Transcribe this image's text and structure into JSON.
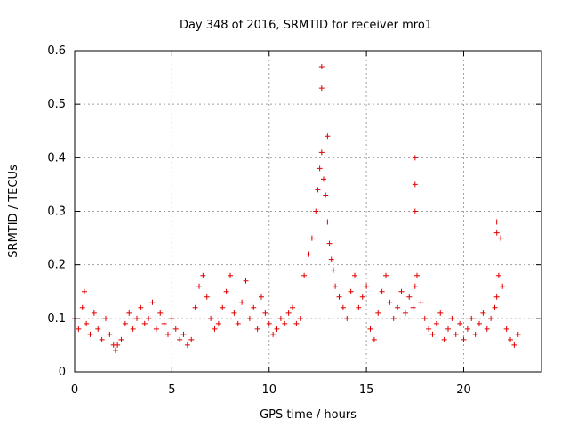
{
  "chart_data": {
    "type": "scatter",
    "title": "Day 348 of 2016, SRMTID for receiver mro1",
    "xlabel": "GPS time / hours",
    "ylabel": "SRMTID / TECUs",
    "xlim": [
      0,
      24
    ],
    "ylim": [
      0,
      0.6
    ],
    "x_ticks": [
      "0",
      "5",
      "10",
      "15",
      "20"
    ],
    "x_tick_values": [
      0,
      5,
      10,
      15,
      20
    ],
    "y_ticks": [
      "0",
      "0.1",
      "0.2",
      "0.3",
      "0.4",
      "0.5",
      "0.6"
    ],
    "y_tick_values": [
      0,
      0.1,
      0.2,
      0.3,
      0.4,
      0.5,
      0.6
    ],
    "grid": true,
    "marker": "+",
    "marker_color": "#e00000",
    "series": [
      {
        "name": "SRMTID",
        "x": [
          0.0,
          0.2,
          0.4,
          0.5,
          0.6,
          0.8,
          1.0,
          1.2,
          1.4,
          1.6,
          1.8,
          2.0,
          2.1,
          2.2,
          2.4,
          2.6,
          2.8,
          3.0,
          3.2,
          3.4,
          3.6,
          3.8,
          4.0,
          4.2,
          4.4,
          4.6,
          4.8,
          5.0,
          5.2,
          5.4,
          5.6,
          5.8,
          6.0,
          6.2,
          6.4,
          6.6,
          6.8,
          7.0,
          7.2,
          7.4,
          7.6,
          7.8,
          8.0,
          8.2,
          8.4,
          8.6,
          8.8,
          9.0,
          9.2,
          9.4,
          9.6,
          9.8,
          10.0,
          10.2,
          10.4,
          10.6,
          10.8,
          11.0,
          11.2,
          11.4,
          11.6,
          11.8,
          12.0,
          12.2,
          12.4,
          12.5,
          12.6,
          12.7,
          12.8,
          12.9,
          13.0,
          13.1,
          13.2,
          13.3,
          13.4,
          13.6,
          13.8,
          14.0,
          14.2,
          14.4,
          14.6,
          14.8,
          15.0,
          15.2,
          15.4,
          15.6,
          15.8,
          16.0,
          16.2,
          16.4,
          16.6,
          16.8,
          17.0,
          17.2,
          17.4,
          17.5,
          17.6,
          17.8,
          18.0,
          18.2,
          18.4,
          18.6,
          18.8,
          19.0,
          19.2,
          19.4,
          19.6,
          19.8,
          20.0,
          20.2,
          20.4,
          20.6,
          20.8,
          21.0,
          21.2,
          21.4,
          21.6,
          21.7,
          21.8,
          21.9,
          22.0,
          22.2,
          22.4,
          22.6,
          22.8,
          12.7,
          12.7,
          13.0,
          17.5,
          17.5,
          17.5,
          21.7,
          21.7
        ],
        "y": [
          0.1,
          0.08,
          0.12,
          0.15,
          0.09,
          0.07,
          0.11,
          0.08,
          0.06,
          0.1,
          0.07,
          0.05,
          0.04,
          0.05,
          0.06,
          0.09,
          0.11,
          0.08,
          0.1,
          0.12,
          0.09,
          0.1,
          0.13,
          0.08,
          0.11,
          0.09,
          0.07,
          0.1,
          0.08,
          0.06,
          0.07,
          0.05,
          0.06,
          0.12,
          0.16,
          0.18,
          0.14,
          0.1,
          0.08,
          0.09,
          0.12,
          0.15,
          0.18,
          0.11,
          0.09,
          0.13,
          0.17,
          0.1,
          0.12,
          0.08,
          0.14,
          0.11,
          0.09,
          0.07,
          0.08,
          0.1,
          0.09,
          0.11,
          0.12,
          0.09,
          0.1,
          0.18,
          0.22,
          0.25,
          0.3,
          0.34,
          0.38,
          0.41,
          0.36,
          0.33,
          0.28,
          0.24,
          0.21,
          0.19,
          0.16,
          0.14,
          0.12,
          0.1,
          0.15,
          0.18,
          0.12,
          0.14,
          0.16,
          0.08,
          0.06,
          0.11,
          0.15,
          0.18,
          0.13,
          0.1,
          0.12,
          0.15,
          0.11,
          0.14,
          0.12,
          0.16,
          0.18,
          0.13,
          0.1,
          0.08,
          0.07,
          0.09,
          0.11,
          0.06,
          0.08,
          0.1,
          0.07,
          0.09,
          0.06,
          0.08,
          0.1,
          0.07,
          0.09,
          0.11,
          0.08,
          0.1,
          0.12,
          0.14,
          0.18,
          0.25,
          0.16,
          0.08,
          0.06,
          0.05,
          0.07,
          0.57,
          0.53,
          0.44,
          0.4,
          0.35,
          0.3,
          0.28,
          0.26
        ]
      }
    ]
  }
}
